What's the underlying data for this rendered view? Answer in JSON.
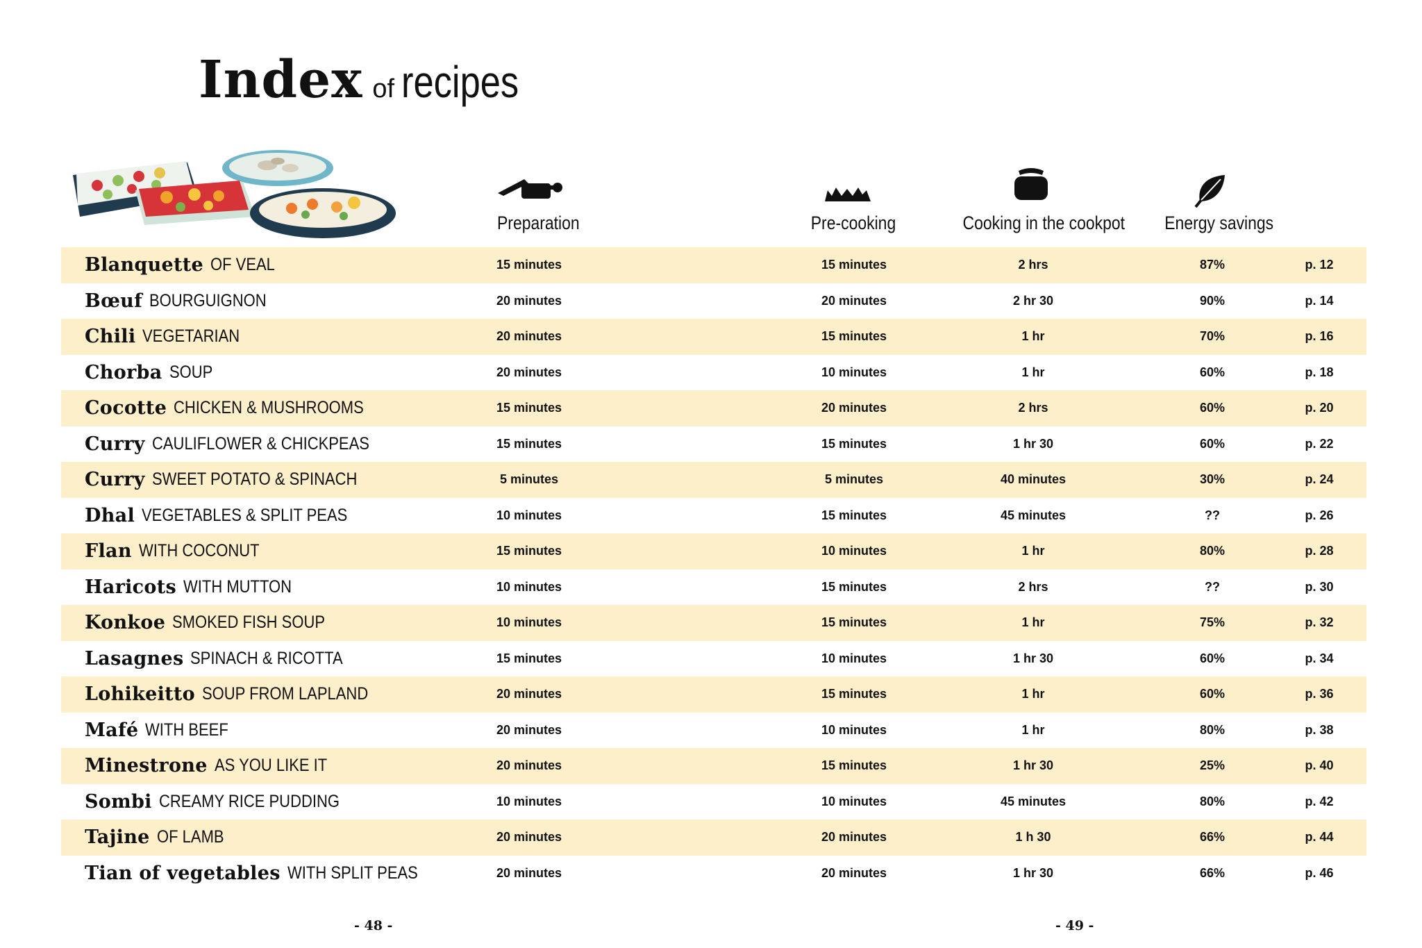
{
  "title": {
    "main": "Index",
    "of": "of",
    "rest": "recipes"
  },
  "columns": {
    "preparation": {
      "label": "Preparation",
      "icon": "knife-board-icon"
    },
    "precooking": {
      "label": "Pre-cooking",
      "icon": "flame-icon"
    },
    "cookpot": {
      "label": "Cooking in the cookpot",
      "icon": "cookpot-icon"
    },
    "energy": {
      "label": "Energy savings",
      "icon": "leaf-icon"
    }
  },
  "recipes": [
    {
      "main": "Blanquette",
      "sub": "OF VEAL",
      "prep": "15 minutes",
      "precook": "15 minutes",
      "cook": "2 hrs",
      "energy": "87%",
      "page": "p. 12"
    },
    {
      "main": "Bœuf",
      "sub": "BOURGUIGNON",
      "prep": "20 minutes",
      "precook": "20 minutes",
      "cook": "2 hr 30",
      "energy": "90%",
      "page": "p. 14"
    },
    {
      "main": "Chili",
      "sub": "VEGETARIAN",
      "prep": "20 minutes",
      "precook": "15 minutes",
      "cook": "1 hr",
      "energy": "70%",
      "page": "p. 16"
    },
    {
      "main": "Chorba",
      "sub": "SOUP",
      "prep": "20 minutes",
      "precook": "10 minutes",
      "cook": "1 hr",
      "energy": "60%",
      "page": "p. 18"
    },
    {
      "main": "Cocotte",
      "sub": "CHICKEN & MUSHROOMS",
      "prep": "15 minutes",
      "precook": "20 minutes",
      "cook": "2 hrs",
      "energy": "60%",
      "page": "p. 20"
    },
    {
      "main": "Curry",
      "sub": "CAULIFLOWER & CHICKPEAS",
      "prep": "15 minutes",
      "precook": "15 minutes",
      "cook": "1 hr 30",
      "energy": "60%",
      "page": "p. 22"
    },
    {
      "main": "Curry",
      "sub": "SWEET POTATO & SPINACH",
      "prep": "5 minutes",
      "precook": "5 minutes",
      "cook": "40 minutes",
      "energy": "30%",
      "page": "p. 24"
    },
    {
      "main": "Dhal",
      "sub": "VEGETABLES & SPLIT PEAS",
      "prep": "10 minutes",
      "precook": "15 minutes",
      "cook": "45 minutes",
      "energy": "??",
      "page": "p. 26"
    },
    {
      "main": "Flan",
      "sub": "WITH COCONUT",
      "prep": "15 minutes",
      "precook": "10 minutes",
      "cook": "1 hr",
      "energy": "80%",
      "page": "p. 28"
    },
    {
      "main": "Haricots",
      "sub": "WITH MUTTON",
      "prep": "10 minutes",
      "precook": "15 minutes",
      "cook": "2 hrs",
      "energy": "??",
      "page": "p. 30"
    },
    {
      "main": "Konkoe",
      "sub": "SMOKED FISH SOUP",
      "prep": "10 minutes",
      "precook": "15 minutes",
      "cook": "1 hr",
      "energy": "75%",
      "page": "p. 32"
    },
    {
      "main": "Lasagnes",
      "sub": "SPINACH & RICOTTA",
      "prep": "15 minutes",
      "precook": "10 minutes",
      "cook": "1 hr 30",
      "energy": "60%",
      "page": "p. 34"
    },
    {
      "main": "Lohikeitto",
      "sub": "SOUP FROM LAPLAND",
      "prep": "20 minutes",
      "precook": "15 minutes",
      "cook": "1 hr",
      "energy": "60%",
      "page": "p. 36"
    },
    {
      "main": "Mafé",
      "sub": "WITH BEEF",
      "prep": "20 minutes",
      "precook": "10 minutes",
      "cook": "1 hr",
      "energy": "80%",
      "page": "p. 38"
    },
    {
      "main": "Minestrone",
      "sub": "AS YOU LIKE IT",
      "prep": "20 minutes",
      "precook": "15 minutes",
      "cook": "1 hr 30",
      "energy": "25%",
      "page": "p. 40"
    },
    {
      "main": "Sombi",
      "sub": "CREAMY RICE PUDDING",
      "prep": "10 minutes",
      "precook": "10 minutes",
      "cook": "45 minutes",
      "energy": "80%",
      "page": "p. 42"
    },
    {
      "main": "Tajine",
      "sub": "OF LAMB",
      "prep": "20 minutes",
      "precook": "20 minutes",
      "cook": "1 h 30",
      "energy": "66%",
      "page": "p. 44"
    },
    {
      "main": "Tian of vegetables",
      "sub": "WITH SPLIT PEAS",
      "prep": "20 minutes",
      "precook": "20 minutes",
      "cook": "1 hr 30",
      "energy": "66%",
      "page": "p. 46"
    }
  ],
  "footer": {
    "left_page": "- 48 -",
    "right_page": "- 49 -"
  },
  "colors": {
    "row_shade": "#fdefc9",
    "dish_navy": "#1f3b4d",
    "dish_blue": "#6fb6c9",
    "dish_red": "#d7343a"
  }
}
